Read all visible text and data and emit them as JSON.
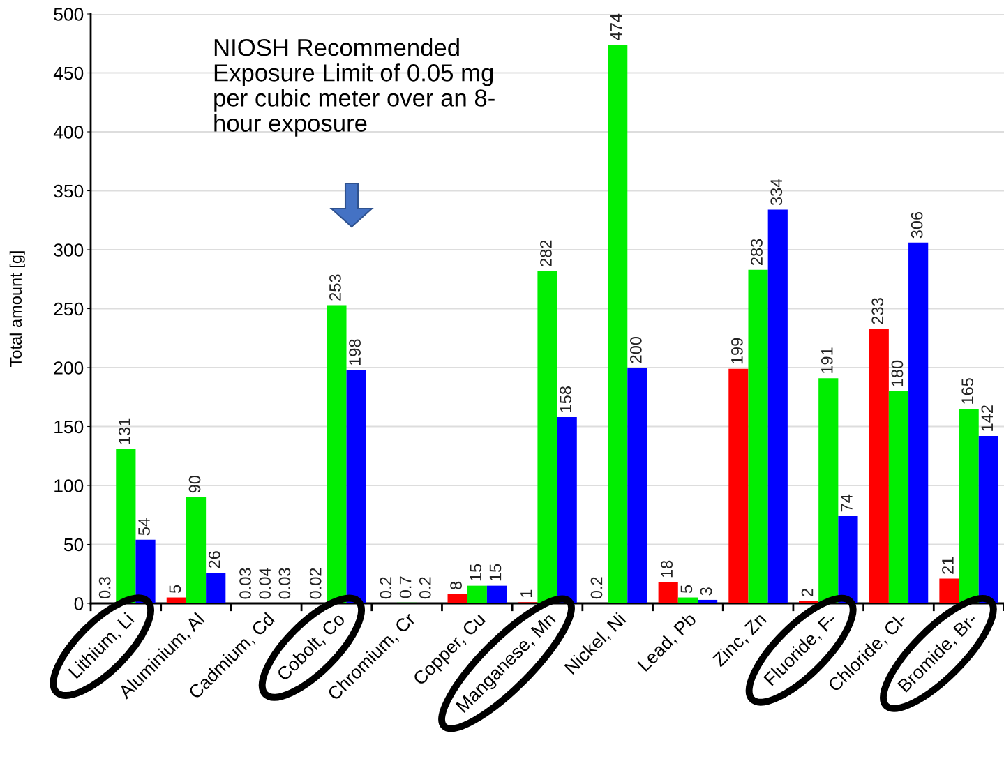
{
  "chart_data": {
    "type": "bar",
    "ylabel": "Total amount [g]",
    "categories": [
      "Lithium, Li",
      "Aluminium, Al",
      "Cadmium, Cd",
      "Cobolt, Co",
      "Chromium, Cr",
      "Copper, Cu",
      "Manganese, Mn",
      "Nickel, Ni",
      "Lead, Pb",
      "Zinc, Zn",
      "Fluoride, F-",
      "Chloride, Cl-",
      "Bromide, Br-"
    ],
    "series": [
      {
        "color": "#ff0000",
        "values": [
          0.3,
          5,
          0.03,
          0.02,
          0.2,
          8,
          1,
          0.2,
          18,
          199,
          2,
          233,
          21
        ]
      },
      {
        "color": "#00ee00",
        "values": [
          131,
          90,
          0.04,
          253,
          0.7,
          15,
          282,
          474,
          5,
          283,
          191,
          180,
          165
        ]
      },
      {
        "color": "#0000ff",
        "values": [
          54,
          26,
          0.03,
          198,
          0.2,
          15,
          158,
          200,
          3,
          334,
          74,
          306,
          142
        ]
      }
    ],
    "data_labels": true,
    "ylim": [
      0,
      500
    ],
    "yticks": [
      0,
      50,
      100,
      150,
      200,
      250,
      300,
      350,
      400,
      450,
      500
    ],
    "grid": "y",
    "annotations": [
      "NIOSH Recommended\nExposure Limit of 0.05 mg\nper cubic meter over an 8-\nhour exposure"
    ]
  }
}
